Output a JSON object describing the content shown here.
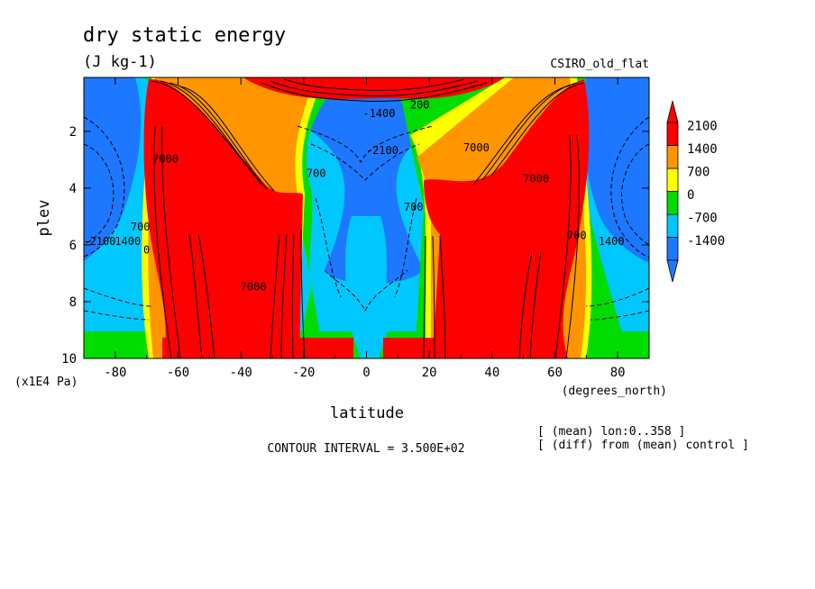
{
  "chart_data": {
    "type": "heatmap",
    "title": "dry static energy",
    "units": "(J kg-1)",
    "model_label": "CSIRO_old_flat",
    "xlabel": "latitude",
    "x_units": "(degrees_north)",
    "ylabel": "plev",
    "y_units": "(x1E4 Pa)",
    "xlim": [
      -90,
      90
    ],
    "ylim": [
      10,
      0.1
    ],
    "x_ticks": [
      -80,
      -60,
      -40,
      -20,
      0,
      20,
      40,
      60,
      80
    ],
    "x_tick_labels": [
      "-80",
      "-60",
      "-40",
      "-20",
      "0",
      "20",
      "40",
      "60",
      "80"
    ],
    "y_ticks": [
      2,
      4,
      6,
      8,
      10
    ],
    "y_tick_labels": [
      "2",
      "4",
      "6",
      "8",
      "10"
    ],
    "contour_interval_text": "CONTOUR INTERVAL = 3.500E+02",
    "notes": [
      "[ (mean) lon:0..358 ]",
      "[ (diff) from (mean) control ]"
    ],
    "colorbar": {
      "levels": [
        -1400,
        -700,
        0,
        700,
        1400,
        2100
      ],
      "labels": [
        "2100",
        "1400",
        "700",
        "0",
        "-700",
        "-1400"
      ],
      "colors": [
        "#1e78ff",
        "#00c8ff",
        "#00dc00",
        "#ffff00",
        "#ff9600",
        "#ff0000"
      ],
      "extend": "both"
    },
    "features": [
      {
        "name": "southern midlatitude maximum",
        "lat": -45,
        "plev": 5,
        "value": 7000
      },
      {
        "name": "northern midlatitude maximum",
        "lat": 45,
        "plev": 5.5,
        "value": 7000
      },
      {
        "name": "tropical upper minimum",
        "lat": 0,
        "plev": 3,
        "value": -2100
      },
      {
        "name": "southern polar minimum",
        "lat": -82,
        "plev": 6,
        "value": -2100
      }
    ],
    "contour_labels": [
      {
        "text": "7000",
        "lat": -64,
        "plev": 3.1
      },
      {
        "text": "7000",
        "lat": -36,
        "plev": 7.6
      },
      {
        "text": "-2100",
        "lat": -85,
        "plev": 6.0
      },
      {
        "text": "1400",
        "lat": -76,
        "plev": 6.0
      },
      {
        "text": "700",
        "lat": -72,
        "plev": 5.5
      },
      {
        "text": "0",
        "lat": -70,
        "plev": 6.3
      },
      {
        "text": "700",
        "lat": -16,
        "plev": 3.6
      },
      {
        "text": "-1400",
        "lat": 4,
        "plev": 1.5
      },
      {
        "text": "-2100",
        "lat": 5,
        "plev": 2.8
      },
      {
        "text": "200",
        "lat": 17,
        "plev": 1.2
      },
      {
        "text": "7000",
        "lat": 54,
        "plev": 3.8
      },
      {
        "text": "7000",
        "lat": 35,
        "plev": 2.7
      },
      {
        "text": "700",
        "lat": 67,
        "plev": 5.8
      },
      {
        "text": "1400",
        "lat": 78,
        "plev": 6.0
      },
      {
        "text": "700",
        "lat": 15,
        "plev": 4.8
      }
    ]
  }
}
